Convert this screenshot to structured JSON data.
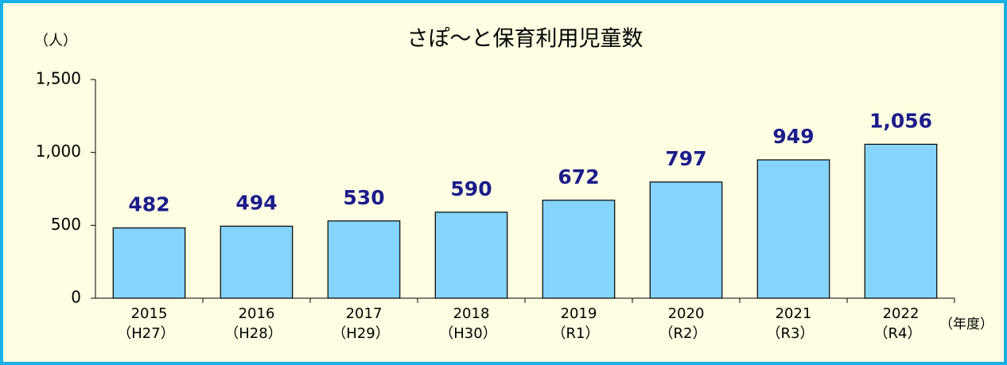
{
  "chart_data": {
    "type": "bar",
    "title": "さぽ～と保育利用児童数",
    "y_label": "（人）",
    "x_label": "（年度）",
    "categories": [
      "2015",
      "2016",
      "2017",
      "2018",
      "2019",
      "2020",
      "2021",
      "2022"
    ],
    "category_eras": [
      "（H27）",
      "（H28）",
      "（H29）",
      "（H30）",
      "（R1）",
      "（R2）",
      "（R3）",
      "（R4）"
    ],
    "values": [
      482,
      494,
      530,
      590,
      672,
      797,
      949,
      1056
    ],
    "value_labels": [
      "482",
      "494",
      "530",
      "590",
      "672",
      "797",
      "949",
      "1,056"
    ],
    "color": "#85d4fb",
    "label_color": "#1c1c8c",
    "ylim": [
      0,
      1500
    ],
    "yticks": [
      0,
      500,
      {
        "value": 1000,
        "label": "1,000"
      },
      {
        "value": 1500,
        "label": "1,500"
      }
    ],
    "grid": false
  }
}
